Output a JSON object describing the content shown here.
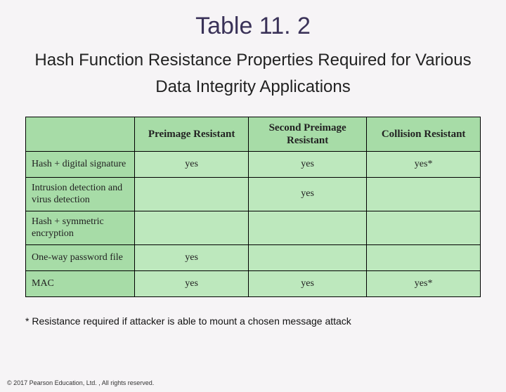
{
  "title": "Table 11. 2",
  "subtitle_line1": "Hash Function Resistance Properties Required for Various",
  "subtitle_line2": "Data Integrity Applications",
  "table": {
    "type": "table",
    "header_bg": "#a7dca7",
    "cell_bg": "#bde8bd",
    "border_color": "#000000",
    "columns": [
      "",
      "Preimage Resistant",
      "Second Preimage Resistant",
      "Collision Resistant"
    ],
    "col_widths_pct": [
      24,
      25,
      26,
      25
    ],
    "header_fontsize": 15,
    "cell_fontsize": 14,
    "rows": [
      {
        "label": "Hash + digital signature",
        "cells": [
          "yes",
          "yes",
          "yes*"
        ]
      },
      {
        "label": "Intrusion detection and virus detection",
        "cells": [
          "",
          "yes",
          ""
        ]
      },
      {
        "label": "Hash + symmetric encryption",
        "cells": [
          "",
          "",
          ""
        ]
      },
      {
        "label": "One-way password file",
        "cells": [
          "yes",
          "",
          ""
        ]
      },
      {
        "label": "MAC",
        "cells": [
          "yes",
          "yes",
          "yes*"
        ]
      }
    ]
  },
  "footnote": "* Resistance required if attacker is able to mount a chosen message attack",
  "copyright": "© 2017 Pearson Education, Ltd. , All rights reserved."
}
